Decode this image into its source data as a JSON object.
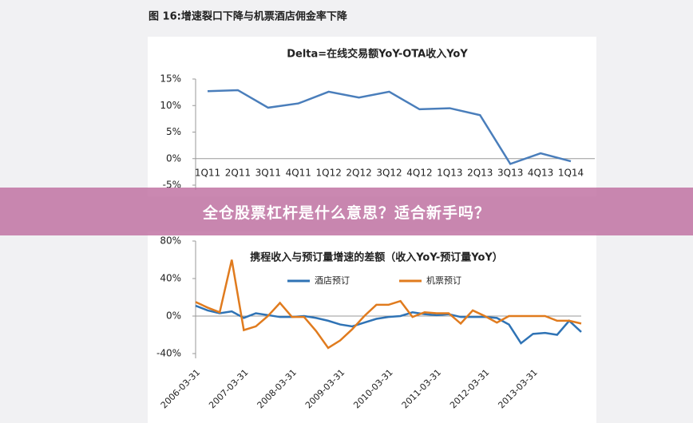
{
  "caption": "图 16:增速裂口下降与机票酒店佣金率下降",
  "banner": "全仓股票杠杆是什么意思？适合新手吗？",
  "chart_data": [
    {
      "type": "line",
      "title": "Delta=在线交易额YoY-OTA收入YoY",
      "categories": [
        "1Q11",
        "2Q11",
        "3Q11",
        "4Q11",
        "1Q12",
        "2Q12",
        "3Q12",
        "4Q12",
        "1Q13",
        "2Q13",
        "3Q13",
        "4Q13",
        "1Q14"
      ],
      "values": [
        12.7,
        12.9,
        9.6,
        10.4,
        12.6,
        11.5,
        12.6,
        9.3,
        9.5,
        8.2,
        -1.0,
        1.0,
        -0.5
      ],
      "color": "#4a7ebb",
      "ylim": [
        -5,
        15
      ],
      "yticks": [
        {
          "value": -5,
          "label": "-5%"
        },
        {
          "value": 0,
          "label": "0%"
        },
        {
          "value": 5,
          "label": "5%"
        },
        {
          "value": 10,
          "label": "10%"
        },
        {
          "value": 15,
          "label": "15%"
        }
      ]
    },
    {
      "type": "line",
      "title": "携程收入与预订量增速的差额（收入YoY-预订量YoY）",
      "categories": [
        "2006-03-31",
        null,
        null,
        null,
        "2007-03-31",
        null,
        null,
        null,
        "2008-03-31",
        null,
        null,
        null,
        "2009-03-31",
        null,
        null,
        null,
        "2010-03-31",
        null,
        null,
        null,
        "2011-03-31",
        null,
        null,
        null,
        "2012-03-31",
        null,
        null,
        null,
        "2013-03-31",
        null,
        null,
        null,
        null
      ],
      "series": [
        {
          "name": "酒店预订",
          "color": "#2f73b5",
          "values": [
            11,
            6,
            3,
            5,
            -2,
            3,
            1,
            -1,
            -1,
            0,
            -2,
            -5,
            -9,
            -11,
            -7,
            -3,
            -1,
            0,
            4,
            2,
            1,
            2,
            -1,
            -1,
            -1,
            -2,
            -9,
            -29,
            -19,
            -18,
            -20,
            -5,
            -17
          ]
        },
        {
          "name": "机票预订",
          "color": "#e07b1e",
          "values": [
            15,
            9,
            4,
            60,
            -15,
            -11,
            0,
            14,
            -1,
            -1,
            -16,
            -34,
            -26,
            -14,
            0,
            12,
            12,
            16,
            -1,
            4,
            3,
            3,
            -8,
            6,
            0,
            -7,
            0,
            0,
            0,
            0,
            -5,
            -5,
            -8
          ]
        }
      ],
      "ylim": [
        -40,
        80
      ],
      "yticks": [
        {
          "value": -40,
          "label": "-40%"
        },
        {
          "value": 0,
          "label": "0%"
        },
        {
          "value": 40,
          "label": "40%"
        },
        {
          "value": 80,
          "label": "80%"
        }
      ]
    }
  ]
}
